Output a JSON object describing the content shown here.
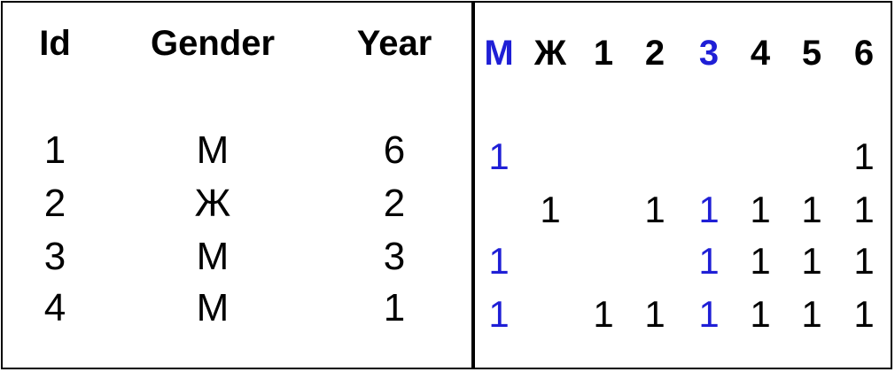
{
  "left_table": {
    "headers": [
      "Id",
      "Gender",
      "Year"
    ],
    "rows": [
      [
        "1",
        "М",
        "6"
      ],
      [
        "2",
        "Ж",
        "2"
      ],
      [
        "3",
        "М",
        "3"
      ],
      [
        "4",
        "М",
        "1"
      ]
    ]
  },
  "right_table": {
    "headers": [
      "М",
      "Ж",
      "1",
      "2",
      "3",
      "4",
      "5",
      "6"
    ],
    "rows": [
      [
        "1",
        "",
        "",
        "",
        "",
        "",
        "",
        "1"
      ],
      [
        "",
        "1",
        "",
        "1",
        "1",
        "1",
        "1",
        "1"
      ],
      [
        "1",
        "",
        "",
        "",
        "1",
        "1",
        "1",
        "1"
      ],
      [
        "1",
        "",
        "1",
        "1",
        "1",
        "1",
        "1",
        "1"
      ]
    ]
  },
  "colors": {
    "text": "#000000",
    "highlight": "#1f1fd6",
    "border": "#000000"
  },
  "highlight_columns": [
    "М",
    "3"
  ]
}
